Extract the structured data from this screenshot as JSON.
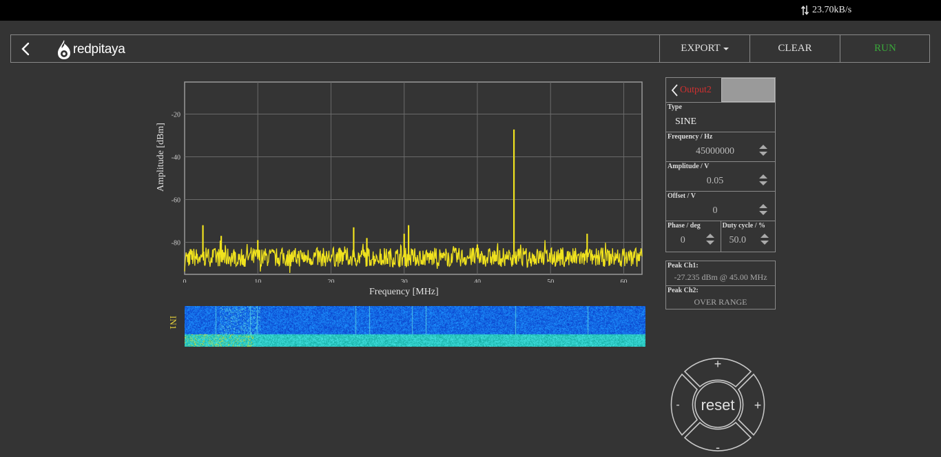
{
  "status": {
    "net_speed": "23.70kB/s"
  },
  "header": {
    "logo": "redpitaya",
    "export_label": "EXPORT",
    "clear_label": "CLEAR",
    "run_label": "RUN"
  },
  "plot": {
    "xlabel": "Frequency   [MHz]",
    "ylabel": "Amplitude  [dBm]",
    "x_ticks": [
      "0",
      "10",
      "20",
      "30",
      "40",
      "50",
      "60"
    ],
    "y_ticks": [
      "-20",
      "-40",
      "-60",
      "-80"
    ]
  },
  "chart_data": {
    "type": "line",
    "xlabel": "Frequency   [MHz]",
    "ylabel": "Amplitude  [dBm]",
    "xlim": [
      0,
      62.5
    ],
    "ylim": [
      -95,
      -5
    ],
    "grid": true,
    "series": [
      {
        "color": "#f0e21e",
        "noise_floor": -87,
        "peaks": [
          {
            "x": 2.5,
            "y": -72
          },
          {
            "x": 5.0,
            "y": -77
          },
          {
            "x": 10.0,
            "y": -79
          },
          {
            "x": 23.1,
            "y": -73
          },
          {
            "x": 24.9,
            "y": -78
          },
          {
            "x": 30.0,
            "y": -76
          },
          {
            "x": 30.6,
            "y": -72
          },
          {
            "x": 40.0,
            "y": -81
          },
          {
            "x": 45.0,
            "y": -27.235
          },
          {
            "x": 55.0,
            "y": -76
          }
        ]
      }
    ]
  },
  "waterfall": {
    "label": "IN1"
  },
  "panel": {
    "title": "Output2",
    "type_label": "Type",
    "type_value": "SINE",
    "freq_label": "Frequency   / Hz",
    "freq_value": "45000000",
    "amp_label": "Amplitude  / V",
    "amp_value": "0.05",
    "offset_label": "Offset  / V",
    "offset_value": "0",
    "phase_label": "Phase   / deg",
    "phase_value": "0",
    "duty_label": "Duty cycle  / %",
    "duty_value": "50.0"
  },
  "peaks": {
    "ch1_label": "Peak  Ch1:",
    "ch1_value": "-27.235  dBm  @  45.00  MHz",
    "ch2_label": "Peak  Ch2:",
    "ch2_value": "OVER RANGE"
  },
  "dpad": {
    "reset_label": "reset",
    "plus": "+",
    "minus": "-"
  }
}
